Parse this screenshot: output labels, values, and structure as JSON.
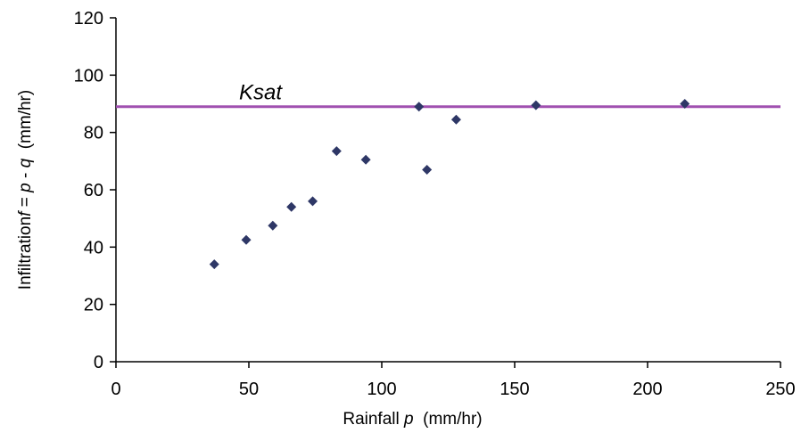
{
  "chart_data": {
    "type": "scatter",
    "xlabel": "Rainfall p  (mm/hr)",
    "xlabel_parts": {
      "text": "Rainfall ",
      "var": "p",
      "unit": "  (mm/hr)"
    },
    "ylabel": "Infiltration f = p - q  (mm/hr)",
    "ylabel_parts": {
      "text": "Infiltration",
      "var1": "f",
      "eq": " = ",
      "var2": "p",
      "minus": " - ",
      "var3": "q",
      "unit": "  (mm/hr)"
    },
    "xlim": [
      0,
      250
    ],
    "ylim": [
      0,
      120
    ],
    "xticks": [
      0,
      50,
      100,
      150,
      200,
      250
    ],
    "yticks": [
      0,
      20,
      40,
      60,
      80,
      100,
      120
    ],
    "grid": false,
    "series": [
      {
        "marker": "diamond",
        "color": "#2e3766",
        "points": [
          {
            "x": 37,
            "y": 34
          },
          {
            "x": 49,
            "y": 42.5
          },
          {
            "x": 59,
            "y": 47.5
          },
          {
            "x": 66,
            "y": 54
          },
          {
            "x": 74,
            "y": 56
          },
          {
            "x": 83,
            "y": 73.5
          },
          {
            "x": 94,
            "y": 70.5
          },
          {
            "x": 114,
            "y": 89
          },
          {
            "x": 117,
            "y": 67
          },
          {
            "x": 128,
            "y": 84.5
          },
          {
            "x": 158,
            "y": 89.5
          },
          {
            "x": 214,
            "y": 90
          }
        ]
      }
    ],
    "reference_line": {
      "label": "Ksat",
      "y": 89,
      "color": "#a050b0"
    }
  }
}
